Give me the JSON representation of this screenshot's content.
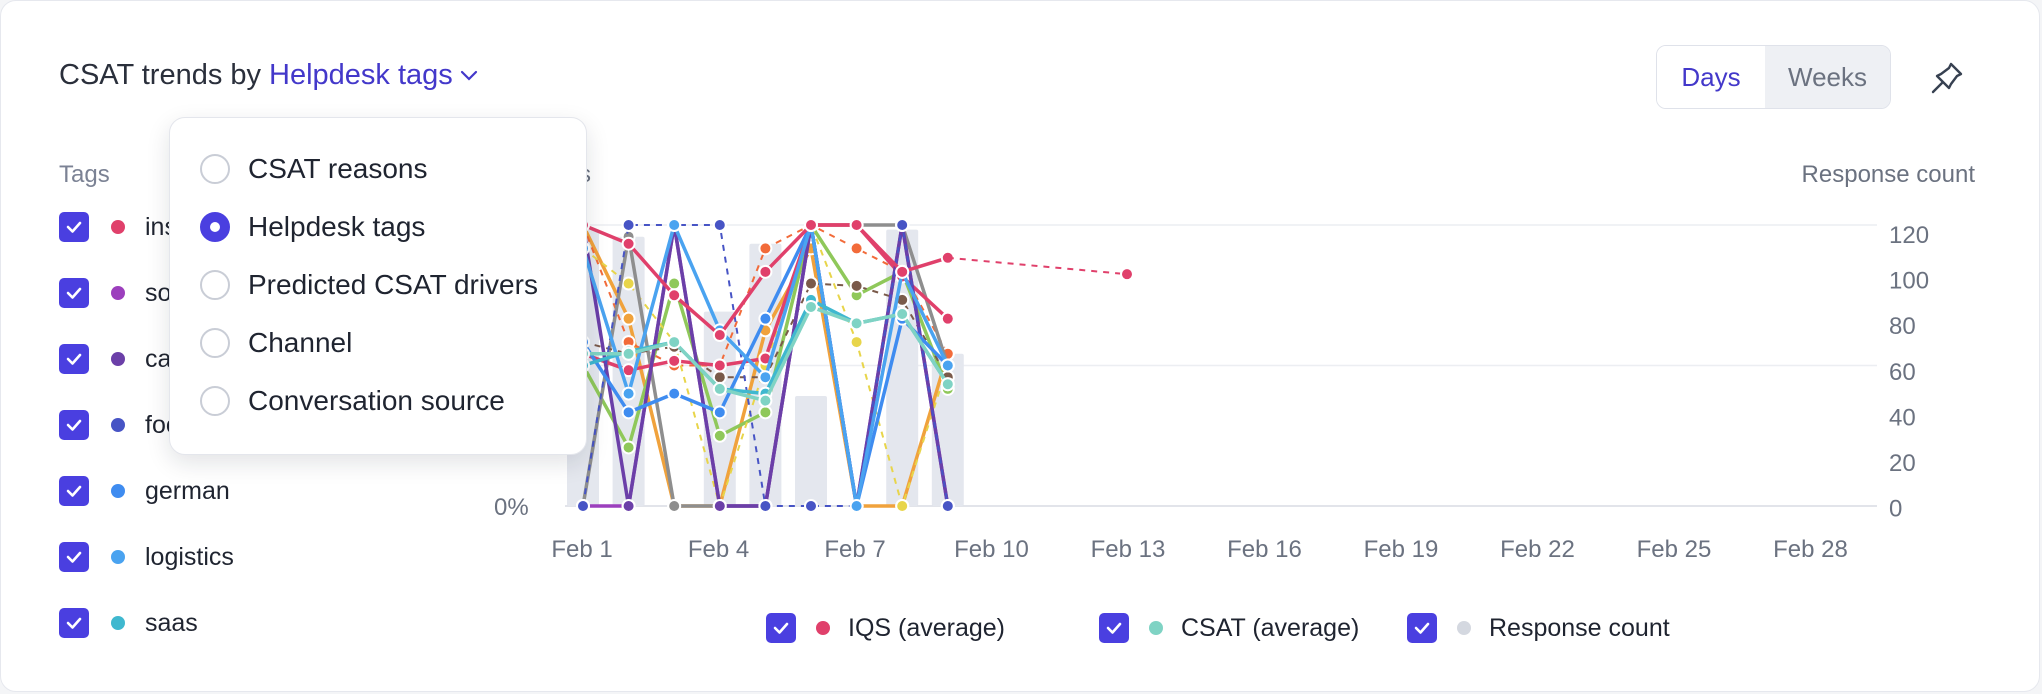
{
  "header": {
    "title_prefix": "CSAT trends by",
    "title_link": "Helpdesk tags",
    "toggle": [
      "Days",
      "Weeks"
    ],
    "active_toggle": "Days"
  },
  "sidebar": {
    "label": "Tags",
    "items": [
      {
        "label": "ins",
        "color": "#e0406b"
      },
      {
        "label": "sof",
        "color": "#9c3fbd"
      },
      {
        "label": "car",
        "color": "#6b3fa8"
      },
      {
        "label": "foo",
        "color": "#4754c5"
      },
      {
        "label": "german",
        "color": "#3f8cf0"
      },
      {
        "label": "logistics",
        "color": "#4aa3f0"
      },
      {
        "label": "saas",
        "color": "#3fb8cf"
      }
    ]
  },
  "dropdown": {
    "options": [
      "CSAT reasons",
      "Helpdesk tags",
      "Predicted CSAT drivers",
      "Channel",
      "Conversation source"
    ],
    "selected": "Helpdesk tags"
  },
  "chart": {
    "left_axis_title_fragment": "s",
    "right_axis_title": "Response count",
    "left_tick": "0%",
    "right_ticks": [
      "120",
      "100",
      "80",
      "60",
      "40",
      "20",
      "0"
    ],
    "x_ticks": [
      "Feb 1",
      "Feb 4",
      "Feb 7",
      "Feb 10",
      "Feb 13",
      "Feb 16",
      "Feb 19",
      "Feb 22",
      "Feb 25",
      "Feb 28"
    ]
  },
  "chart_data": {
    "type": "line",
    "x_ticks": [
      "Feb 1",
      "Feb 4",
      "Feb 7",
      "Feb 10",
      "Feb 13",
      "Feb 16",
      "Feb 19",
      "Feb 22",
      "Feb 25",
      "Feb 28"
    ],
    "ylabel_right": "Response count",
    "ylim_right": [
      0,
      120
    ],
    "bars": {
      "name": "Response count",
      "x": [
        "Feb 1",
        "Feb 2",
        "Feb 3",
        "Feb 4",
        "Feb 5",
        "Feb 6",
        "Feb 7",
        "Feb 8",
        "Feb 9"
      ],
      "values": [
        118,
        115,
        0,
        83,
        112,
        47,
        0,
        118,
        65
      ]
    },
    "iqs_series": {
      "name": "IQS (average)",
      "x": [
        "Feb 1",
        "Feb 2",
        "Feb 3",
        "Feb 4",
        "Feb 5",
        "Feb 6",
        "Feb 7",
        "Feb 8",
        "Feb 9",
        "Feb 13"
      ],
      "values": [
        120,
        112,
        90,
        73,
        100,
        120,
        120,
        100,
        106,
        99
      ]
    },
    "csat_series": {
      "name": "CSAT (average)",
      "x": [
        "Feb 1",
        "Feb 2",
        "Feb 3",
        "Feb 4",
        "Feb 5",
        "Feb 6",
        "Feb 7",
        "Feb 8",
        "Feb 9"
      ],
      "values": [
        65,
        65,
        70,
        50,
        45,
        85,
        78,
        82,
        52
      ]
    },
    "tag_series": [
      {
        "name": "ins",
        "values": [
          65,
          58,
          62,
          60,
          63,
          120,
          120,
          98,
          80
        ]
      },
      {
        "name": "sof",
        "values": [
          0,
          0,
          120,
          0,
          0,
          120,
          0,
          120,
          0
        ]
      },
      {
        "name": "car",
        "values": [
          120,
          0,
          120,
          0,
          0,
          120,
          0,
          120,
          0
        ]
      },
      {
        "name": "foo",
        "values": [
          0,
          120,
          120,
          120,
          0,
          0,
          0,
          120,
          0
        ]
      },
      {
        "name": "german",
        "values": [
          70,
          40,
          48,
          40,
          80,
          120,
          0,
          80,
          60
        ]
      },
      {
        "name": "logistics",
        "values": [
          110,
          48,
          120,
          75,
          55,
          120,
          0,
          100,
          60
        ]
      },
      {
        "name": "saas",
        "values": [
          60,
          66,
          70,
          50,
          48,
          88,
          78,
          82,
          52
        ]
      }
    ],
    "legend_placement": "bottom"
  },
  "legend": [
    {
      "label": "IQS (average)",
      "color": "#e0406b"
    },
    {
      "label": "CSAT (average)",
      "color": "#7fd3c4"
    },
    {
      "label": "Response count",
      "color": "#d4d8e0"
    }
  ]
}
